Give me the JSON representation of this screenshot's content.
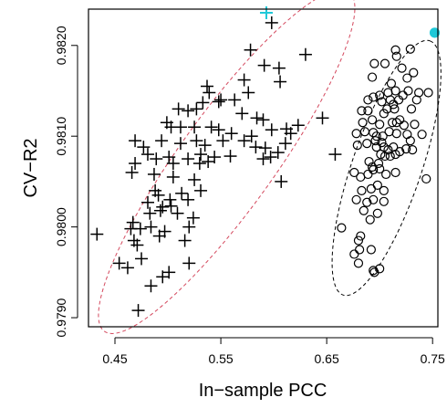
{
  "chart_data": {
    "type": "scatter",
    "title": "",
    "xlabel": "In−sample PCC",
    "ylabel": "CV−R2",
    "xlim": [
      0.425,
      0.755
    ],
    "ylim": [
      0.9789,
      0.9824
    ],
    "x_ticks": [
      0.45,
      0.55,
      0.65,
      0.75
    ],
    "x_tick_labels": [
      "0.45",
      "0.55",
      "0.65",
      "0.75"
    ],
    "y_ticks": [
      0.979,
      0.98,
      0.981,
      0.982
    ],
    "y_tick_labels": [
      "0.9790",
      "0.9800",
      "0.9810",
      "0.9820"
    ],
    "grid": false,
    "series": [
      {
        "marker": "plus",
        "color": "#000000",
        "points": [
          [
            0.598,
            0.98225
          ],
          [
            0.63,
            0.9819
          ],
          [
            0.578,
            0.98195
          ],
          [
            0.605,
            0.98175
          ],
          [
            0.591,
            0.98178
          ],
          [
            0.576,
            0.98148
          ],
          [
            0.572,
            0.98162
          ],
          [
            0.606,
            0.9816
          ],
          [
            0.537,
            0.98155
          ],
          [
            0.539,
            0.98148
          ],
          [
            0.55,
            0.9814
          ],
          [
            0.548,
            0.98138
          ],
          [
            0.563,
            0.9814
          ],
          [
            0.51,
            0.9813
          ],
          [
            0.519,
            0.98128
          ],
          [
            0.527,
            0.9813
          ],
          [
            0.533,
            0.98137
          ],
          [
            0.57,
            0.98125
          ],
          [
            0.584,
            0.9812
          ],
          [
            0.59,
            0.98118
          ],
          [
            0.499,
            0.98115
          ],
          [
            0.503,
            0.9811
          ],
          [
            0.512,
            0.9811
          ],
          [
            0.525,
            0.9811
          ],
          [
            0.541,
            0.9811
          ],
          [
            0.548,
            0.98107
          ],
          [
            0.56,
            0.98103
          ],
          [
            0.579,
            0.981
          ],
          [
            0.598,
            0.98107
          ],
          [
            0.612,
            0.98108
          ],
          [
            0.616,
            0.98103
          ],
          [
            0.623,
            0.98112
          ],
          [
            0.646,
            0.9812
          ],
          [
            0.469,
            0.98095
          ],
          [
            0.477,
            0.98088
          ],
          [
            0.494,
            0.98095
          ],
          [
            0.512,
            0.98092
          ],
          [
            0.527,
            0.98095
          ],
          [
            0.535,
            0.9809
          ],
          [
            0.552,
            0.98095
          ],
          [
            0.572,
            0.98095
          ],
          [
            0.583,
            0.98088
          ],
          [
            0.592,
            0.98087
          ],
          [
            0.611,
            0.98092
          ],
          [
            0.481,
            0.9808
          ],
          [
            0.501,
            0.98077
          ],
          [
            0.519,
            0.98075
          ],
          [
            0.531,
            0.9808
          ],
          [
            0.544,
            0.98077
          ],
          [
            0.559,
            0.98078
          ],
          [
            0.597,
            0.98077
          ],
          [
            0.604,
            0.98082
          ],
          [
            0.658,
            0.9808
          ],
          [
            0.469,
            0.9807
          ],
          [
            0.489,
            0.98075
          ],
          [
            0.505,
            0.9807
          ],
          [
            0.53,
            0.9807
          ],
          [
            0.538,
            0.98072
          ],
          [
            0.59,
            0.98075
          ],
          [
            0.466,
            0.9806
          ],
          [
            0.487,
            0.98058
          ],
          [
            0.505,
            0.98055
          ],
          [
            0.525,
            0.98052
          ],
          [
            0.488,
            0.9804
          ],
          [
            0.491,
            0.98035
          ],
          [
            0.502,
            0.9803
          ],
          [
            0.513,
            0.98037
          ],
          [
            0.531,
            0.9804
          ],
          [
            0.481,
            0.98027
          ],
          [
            0.495,
            0.98022
          ],
          [
            0.503,
            0.98023
          ],
          [
            0.519,
            0.9803
          ],
          [
            0.607,
            0.9805
          ],
          [
            0.493,
            0.98018
          ],
          [
            0.509,
            0.98015
          ],
          [
            0.524,
            0.9801
          ],
          [
            0.483,
            0.98015
          ],
          [
            0.467,
            0.98005
          ],
          [
            0.465,
            0.97998
          ],
          [
            0.474,
            0.97998
          ],
          [
            0.484,
            0.98
          ],
          [
            0.497,
            0.97995
          ],
          [
            0.52,
            0.98
          ],
          [
            0.433,
            0.97992
          ],
          [
            0.468,
            0.97985
          ],
          [
            0.492,
            0.9799
          ],
          [
            0.516,
            0.97985
          ],
          [
            0.454,
            0.9796
          ],
          [
            0.475,
            0.97965
          ],
          [
            0.501,
            0.9795
          ],
          [
            0.52,
            0.9796
          ],
          [
            0.471,
            0.9798
          ],
          [
            0.484,
            0.97935
          ],
          [
            0.495,
            0.97945
          ],
          [
            0.472,
            0.97908
          ],
          [
            0.462,
            0.97955
          ]
        ]
      },
      {
        "marker": "circle",
        "color": "#000000",
        "points": [
          [
            0.715,
            0.98195
          ],
          [
            0.729,
            0.98196
          ],
          [
            0.695,
            0.9818
          ],
          [
            0.705,
            0.9818
          ],
          [
            0.716,
            0.98188
          ],
          [
            0.721,
            0.98175
          ],
          [
            0.693,
            0.98165
          ],
          [
            0.726,
            0.98164
          ],
          [
            0.732,
            0.9817
          ],
          [
            0.711,
            0.98158
          ],
          [
            0.715,
            0.9815
          ],
          [
            0.689,
            0.9814
          ],
          [
            0.694,
            0.98143
          ],
          [
            0.702,
            0.98138
          ],
          [
            0.71,
            0.9814
          ],
          [
            0.718,
            0.9814
          ],
          [
            0.722,
            0.98145
          ],
          [
            0.727,
            0.9815
          ],
          [
            0.735,
            0.9814
          ],
          [
            0.737,
            0.98148
          ],
          [
            0.746,
            0.98148
          ],
          [
            0.683,
            0.98128
          ],
          [
            0.689,
            0.98128
          ],
          [
            0.704,
            0.98125
          ],
          [
            0.707,
            0.9813
          ],
          [
            0.714,
            0.9813
          ],
          [
            0.73,
            0.9813
          ],
          [
            0.684,
            0.98115
          ],
          [
            0.693,
            0.98118
          ],
          [
            0.7,
            0.98113
          ],
          [
            0.712,
            0.98115
          ],
          [
            0.719,
            0.98118
          ],
          [
            0.723,
            0.98112
          ],
          [
            0.733,
            0.98113
          ],
          [
            0.678,
            0.98103
          ],
          [
            0.686,
            0.98105
          ],
          [
            0.697,
            0.981
          ],
          [
            0.703,
            0.981
          ],
          [
            0.709,
            0.98105
          ],
          [
            0.716,
            0.98103
          ],
          [
            0.726,
            0.98102
          ],
          [
            0.729,
            0.98095
          ],
          [
            0.74,
            0.98102
          ],
          [
            0.679,
            0.9809
          ],
          [
            0.688,
            0.98092
          ],
          [
            0.697,
            0.98088
          ],
          [
            0.704,
            0.98088
          ],
          [
            0.708,
            0.98085
          ],
          [
            0.713,
            0.98088
          ],
          [
            0.719,
            0.98083
          ],
          [
            0.725,
            0.98086
          ],
          [
            0.731,
            0.98085
          ],
          [
            0.701,
            0.9808
          ],
          [
            0.705,
            0.98078
          ],
          [
            0.71,
            0.98078
          ],
          [
            0.715,
            0.9808
          ],
          [
            0.676,
            0.9806
          ],
          [
            0.682,
            0.98055
          ],
          [
            0.689,
            0.98058
          ],
          [
            0.694,
            0.98063
          ],
          [
            0.7,
            0.98064
          ],
          [
            0.706,
            0.98058
          ],
          [
            0.715,
            0.9806
          ],
          [
            0.744,
            0.98053
          ],
          [
            0.683,
            0.9804
          ],
          [
            0.692,
            0.98042
          ],
          [
            0.698,
            0.98046
          ],
          [
            0.704,
            0.9804
          ],
          [
            0.678,
            0.9803
          ],
          [
            0.688,
            0.98027
          ],
          [
            0.694,
            0.9803
          ],
          [
            0.704,
            0.98028
          ],
          [
            0.685,
            0.98018
          ],
          [
            0.698,
            0.98015
          ],
          [
            0.691,
            0.98008
          ],
          [
            0.664,
            0.97999
          ],
          [
            0.682,
            0.9799
          ],
          [
            0.68,
            0.97985
          ],
          [
            0.692,
            0.97975
          ],
          [
            0.676,
            0.9797
          ],
          [
            0.681,
            0.97975
          ],
          [
            0.694,
            0.97952
          ],
          [
            0.68,
            0.9796
          ],
          [
            0.695,
            0.9795
          ],
          [
            0.7,
            0.97954
          ],
          [
            0.696,
            0.98095
          ],
          [
            0.694,
            0.98104
          ],
          [
            0.7,
            0.98145
          ],
          [
            0.708,
            0.98148
          ],
          [
            0.713,
            0.98135
          ],
          [
            0.699,
            0.9807
          ],
          [
            0.69,
            0.98072
          ],
          [
            0.693,
            0.98066
          ],
          [
            0.702,
            0.98093
          ],
          [
            0.716,
            0.98115
          ]
        ]
      }
    ],
    "highlights": [
      {
        "marker": "plus",
        "color": "#1ec8d8",
        "x": 0.593,
        "y": 0.98236
      },
      {
        "marker": "circle-filled",
        "color": "#1ec8d8",
        "x": 0.752,
        "y": 0.98214
      }
    ],
    "ellipses": [
      {
        "color": "#d4495e",
        "style": "dashed",
        "center": [
          0.5555,
          0.98072
        ],
        "vertices": [
          [
            0.44,
            0.97885
          ],
          [
            0.671,
            0.98259
          ]
        ]
      },
      {
        "color": "#000000",
        "style": "dashed",
        "center": [
          0.7065,
          0.98065
        ],
        "vertices": [
          [
            0.6655,
            0.97925
          ],
          [
            0.7475,
            0.98205
          ]
        ]
      }
    ]
  }
}
